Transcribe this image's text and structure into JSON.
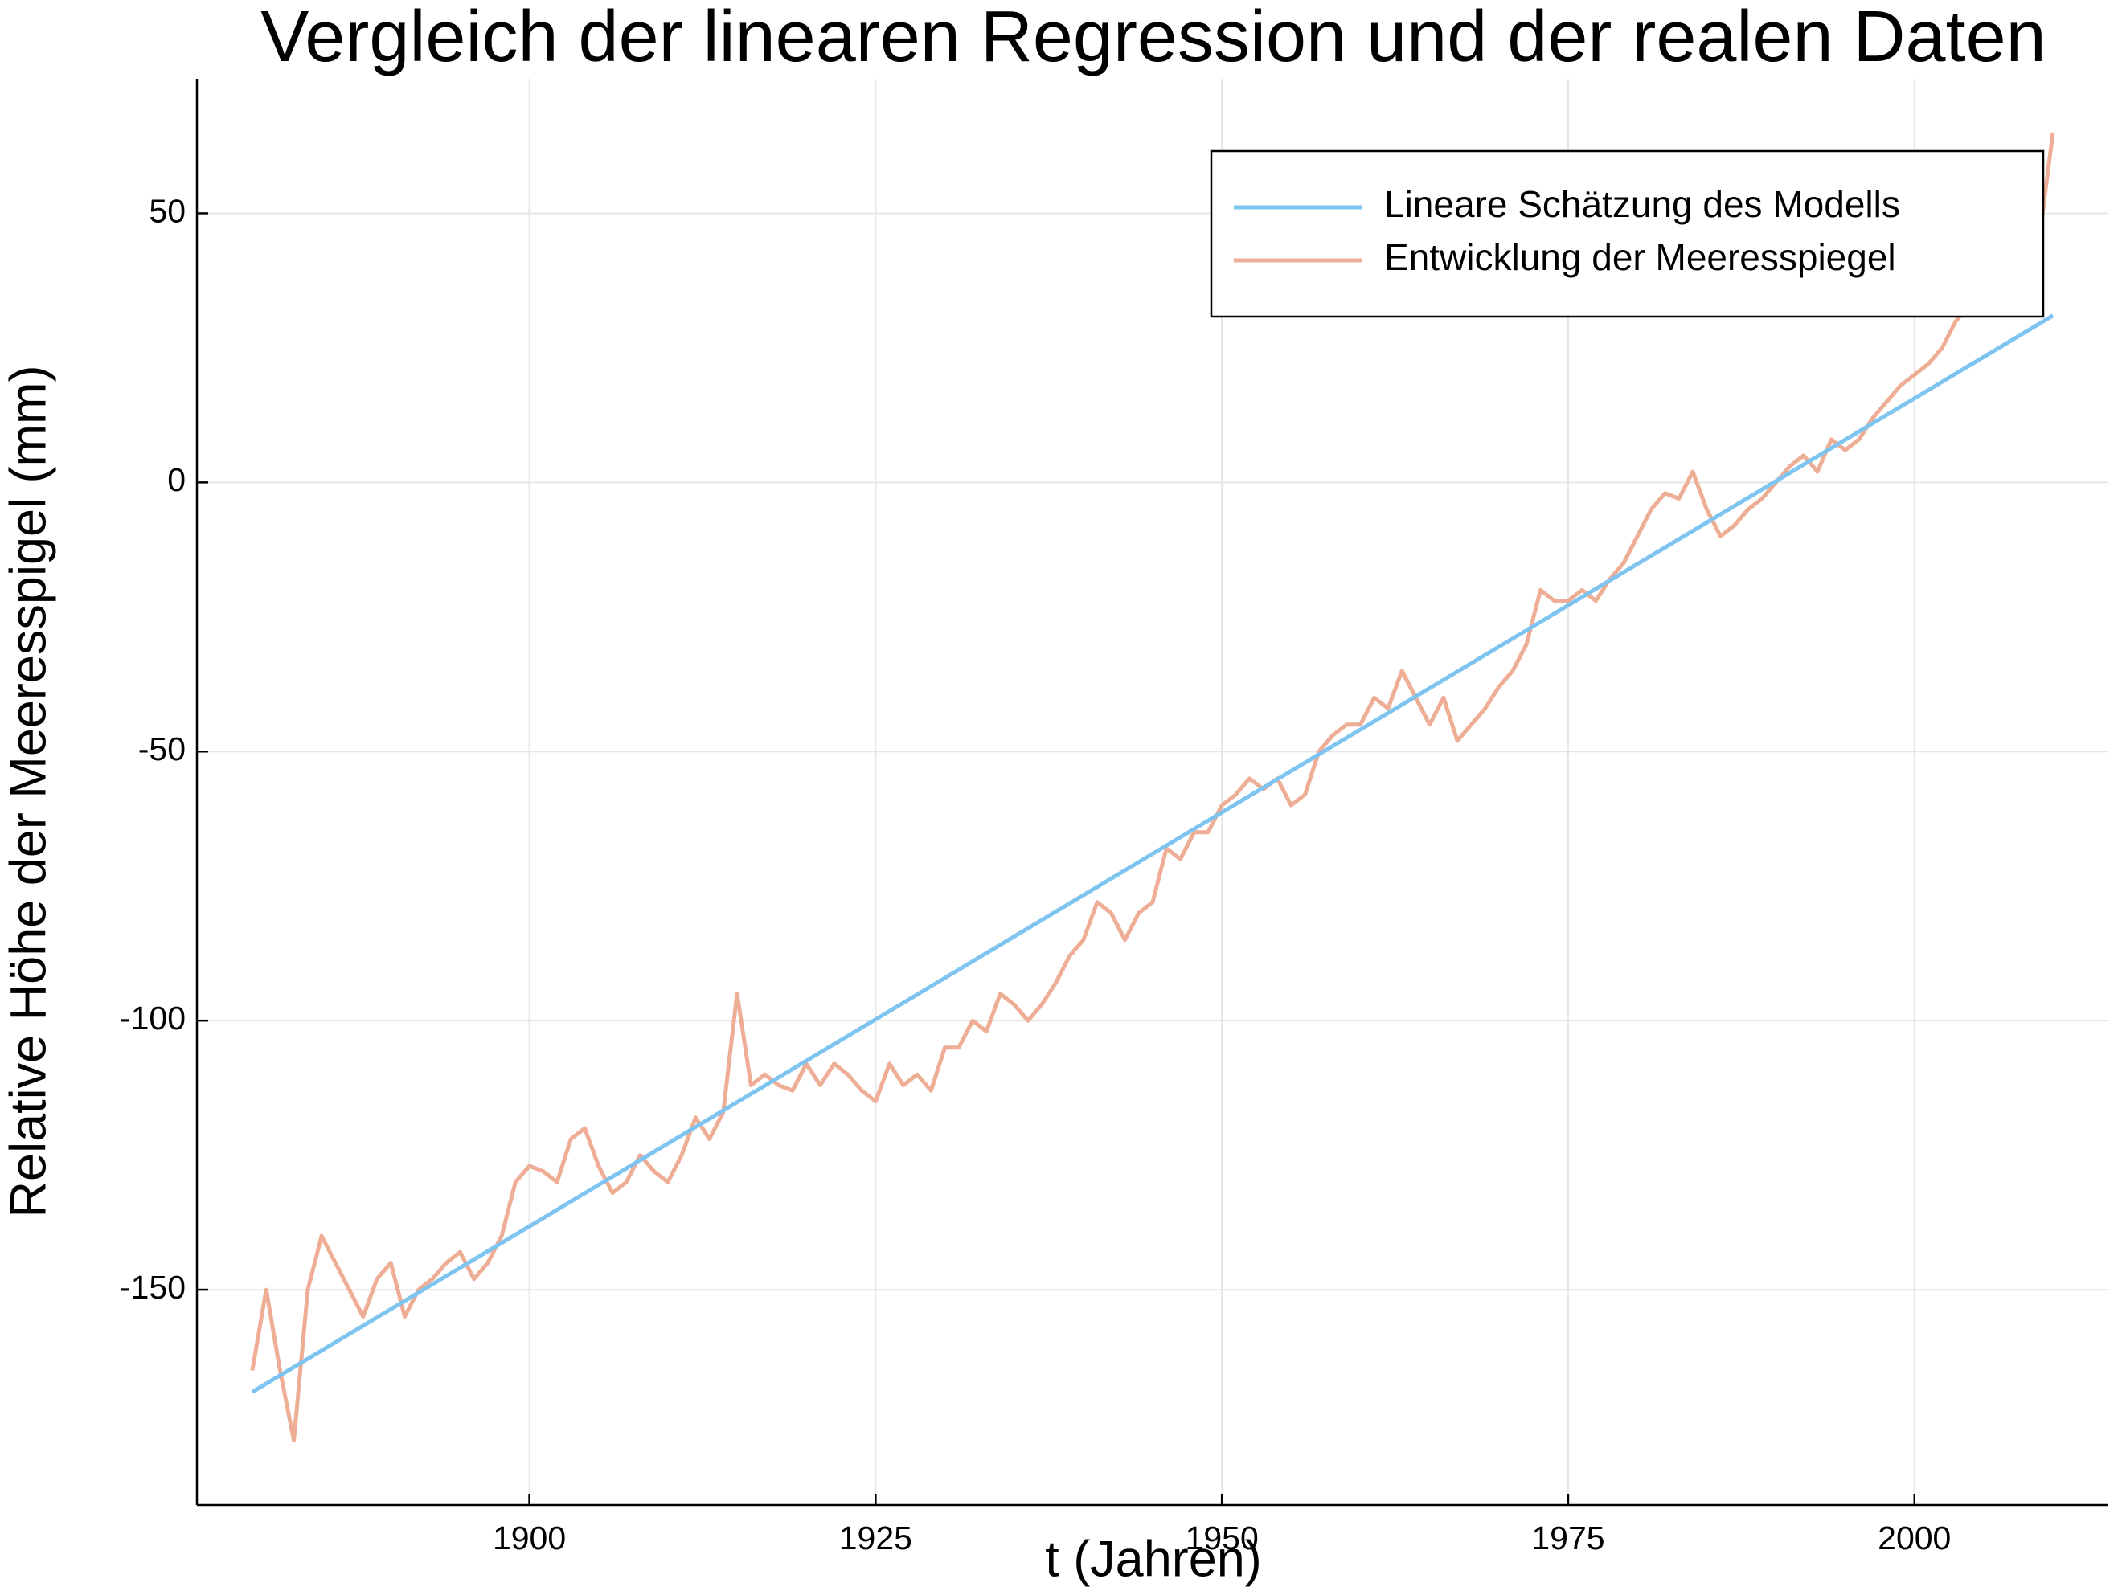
{
  "chart_data": {
    "type": "line",
    "title": "Vergleich der linearen Regression und der realen Daten",
    "xlabel": "t (Jahren)",
    "ylabel": "Relative Höhe der Meeresspigel (mm)",
    "xlim": [
      1876,
      2014
    ],
    "ylim": [
      -190,
      75
    ],
    "xticks": [
      1900,
      1925,
      1950,
      1975,
      2000
    ],
    "yticks": [
      -150,
      -100,
      -50,
      0,
      50
    ],
    "grid": true,
    "legend": "top-right",
    "series": [
      {
        "name": "Lineare Schätzung des Modells",
        "color": "#7ec4f0",
        "x": [
          1880,
          2010
        ],
        "values": [
          -169,
          31
        ]
      },
      {
        "name": "Entwicklung der Meeresspiegel",
        "color": "#eeae96",
        "x": [
          1880,
          1881,
          1882,
          1883,
          1884,
          1885,
          1886,
          1887,
          1888,
          1889,
          1890,
          1891,
          1892,
          1893,
          1894,
          1895,
          1896,
          1897,
          1898,
          1899,
          1900,
          1901,
          1902,
          1903,
          1904,
          1905,
          1906,
          1907,
          1908,
          1909,
          1910,
          1911,
          1912,
          1913,
          1914,
          1915,
          1916,
          1917,
          1918,
          1919,
          1920,
          1921,
          1922,
          1923,
          1924,
          1925,
          1926,
          1927,
          1928,
          1929,
          1930,
          1931,
          1932,
          1933,
          1934,
          1935,
          1936,
          1937,
          1938,
          1939,
          1940,
          1941,
          1942,
          1943,
          1944,
          1945,
          1946,
          1947,
          1948,
          1949,
          1950,
          1951,
          1952,
          1953,
          1954,
          1955,
          1956,
          1957,
          1958,
          1959,
          1960,
          1961,
          1962,
          1963,
          1964,
          1965,
          1966,
          1967,
          1968,
          1969,
          1970,
          1971,
          1972,
          1973,
          1974,
          1975,
          1976,
          1977,
          1978,
          1979,
          1980,
          1981,
          1982,
          1983,
          1984,
          1985,
          1986,
          1987,
          1988,
          1989,
          1990,
          1991,
          1992,
          1993,
          1994,
          1995,
          1996,
          1997,
          1998,
          1999,
          2000,
          2001,
          2002,
          2003,
          2004,
          2005,
          2006,
          2007,
          2008,
          2009,
          2010
        ],
        "values": [
          -165,
          -150,
          -165,
          -178,
          -150,
          -140,
          -145,
          -150,
          -155,
          -148,
          -145,
          -155,
          -150,
          -148,
          -145,
          -143,
          -148,
          -145,
          -140,
          -130,
          -127,
          -128,
          -130,
          -122,
          -120,
          -127,
          -132,
          -130,
          -125,
          -128,
          -130,
          -125,
          -118,
          -122,
          -117,
          -95,
          -112,
          -110,
          -112,
          -113,
          -108,
          -112,
          -108,
          -110,
          -113,
          -115,
          -108,
          -112,
          -110,
          -113,
          -105,
          -105,
          -100,
          -102,
          -95,
          -97,
          -100,
          -97,
          -93,
          -88,
          -85,
          -78,
          -80,
          -85,
          -80,
          -78,
          -68,
          -70,
          -65,
          -65,
          -60,
          -58,
          -55,
          -57,
          -55,
          -60,
          -58,
          -50,
          -47,
          -45,
          -45,
          -40,
          -42,
          -35,
          -40,
          -45,
          -40,
          -48,
          -45,
          -42,
          -38,
          -35,
          -30,
          -20,
          -22,
          -22,
          -20,
          -22,
          -18,
          -15,
          -10,
          -5,
          -2,
          -3,
          2,
          -5,
          -10,
          -8,
          -5,
          -3,
          0,
          3,
          5,
          2,
          8,
          6,
          8,
          12,
          15,
          18,
          20,
          22,
          25,
          30,
          33,
          32,
          35,
          38,
          35,
          45,
          65
        ]
      }
    ]
  }
}
